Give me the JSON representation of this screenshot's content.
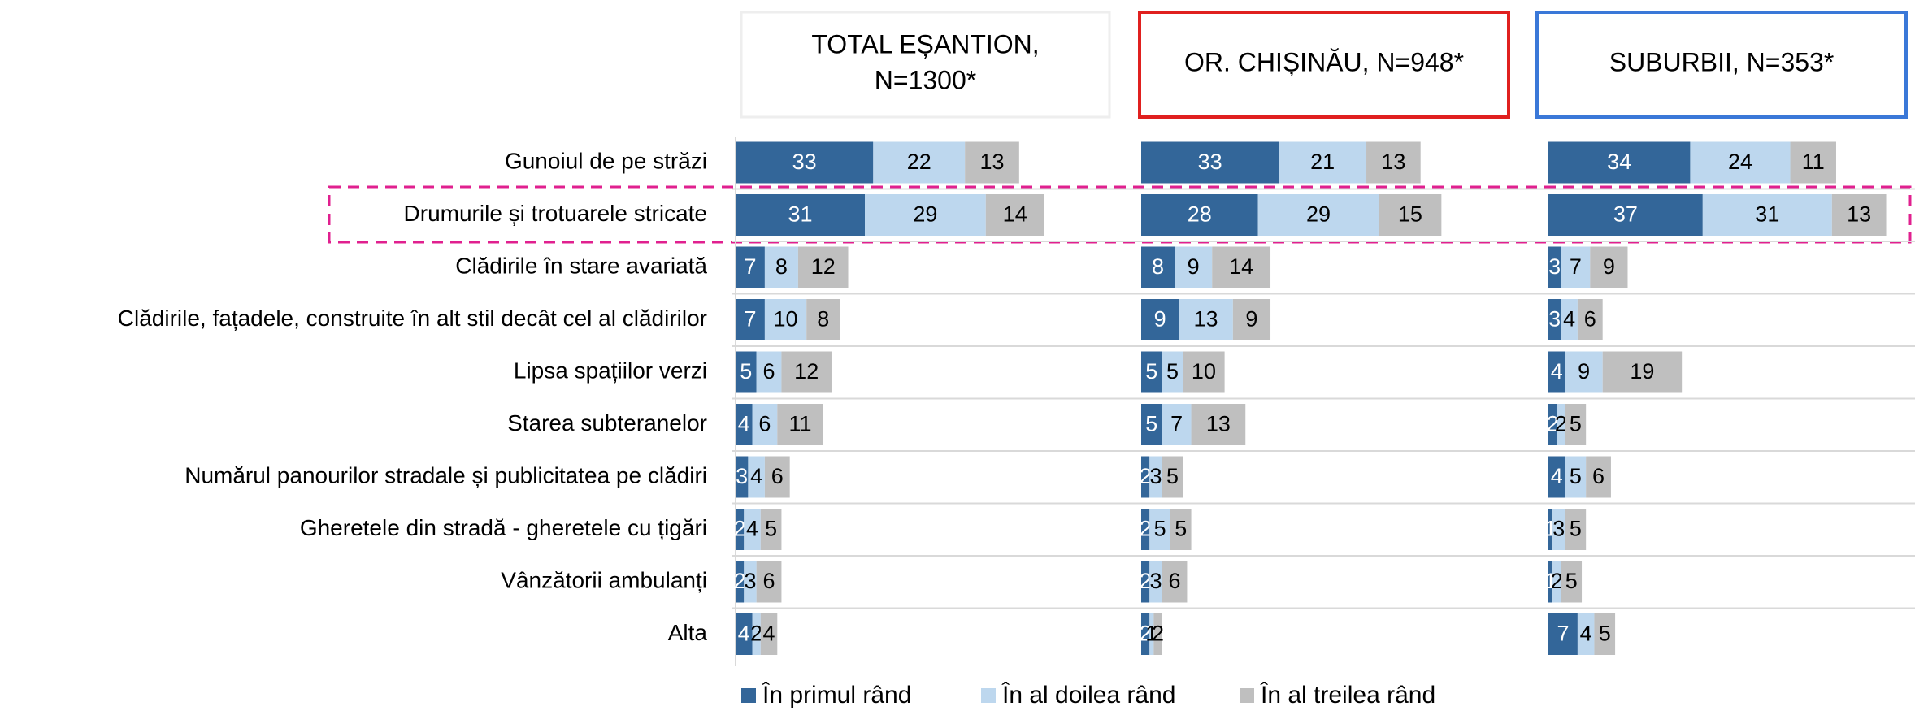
{
  "chart_data": {
    "type": "bar",
    "orientation": "horizontal",
    "stacked": true,
    "categories": [
      "Gunoiul de pe străzi",
      "Drumurile și trotuarele stricate",
      "Clădirile în stare avariată",
      "Clădirile, fațadele, construite în alt stil decât cel al clădirilor",
      "Lipsa spațiilor verzi",
      "Starea subteranelor",
      "Numărul panourilor stradale și publicitatea pe clădiri",
      "Gheretele din stradă - gheretele cu țigări",
      "Vânzătorii ambulanți",
      "Alta"
    ],
    "series": [
      {
        "name": "În primul rând",
        "color": "#336699"
      },
      {
        "name": "În al doilea rând",
        "color": "#bdd7ee"
      },
      {
        "name": "În al treilea rând",
        "color": "#bfbfbf"
      }
    ],
    "panels": [
      {
        "title": [
          "TOTAL EȘANTION,",
          "N=1300*"
        ],
        "border": "#eeeeee",
        "values": [
          [
            33,
            31,
            7,
            7,
            5,
            4,
            3,
            2,
            2,
            4
          ],
          [
            22,
            29,
            8,
            10,
            6,
            6,
            4,
            4,
            3,
            2
          ],
          [
            13,
            14,
            12,
            8,
            12,
            11,
            6,
            5,
            6,
            4
          ]
        ]
      },
      {
        "title": [
          "OR. CHIȘINĂU, N=948*"
        ],
        "border": "#e0201f",
        "values": [
          [
            33,
            28,
            8,
            9,
            5,
            5,
            2,
            2,
            2,
            2
          ],
          [
            21,
            29,
            9,
            13,
            5,
            7,
            3,
            5,
            3,
            1
          ],
          [
            13,
            15,
            14,
            9,
            10,
            13,
            5,
            5,
            6,
            2
          ]
        ]
      },
      {
        "title": [
          "SUBURBII, N=353*"
        ],
        "border": "#3a78d8",
        "values": [
          [
            34,
            37,
            3,
            3,
            4,
            2,
            4,
            1,
            1,
            7
          ],
          [
            24,
            31,
            7,
            4,
            9,
            2,
            5,
            3,
            2,
            4
          ],
          [
            11,
            13,
            9,
            6,
            19,
            5,
            6,
            5,
            5,
            5
          ]
        ]
      }
    ]
  }
}
